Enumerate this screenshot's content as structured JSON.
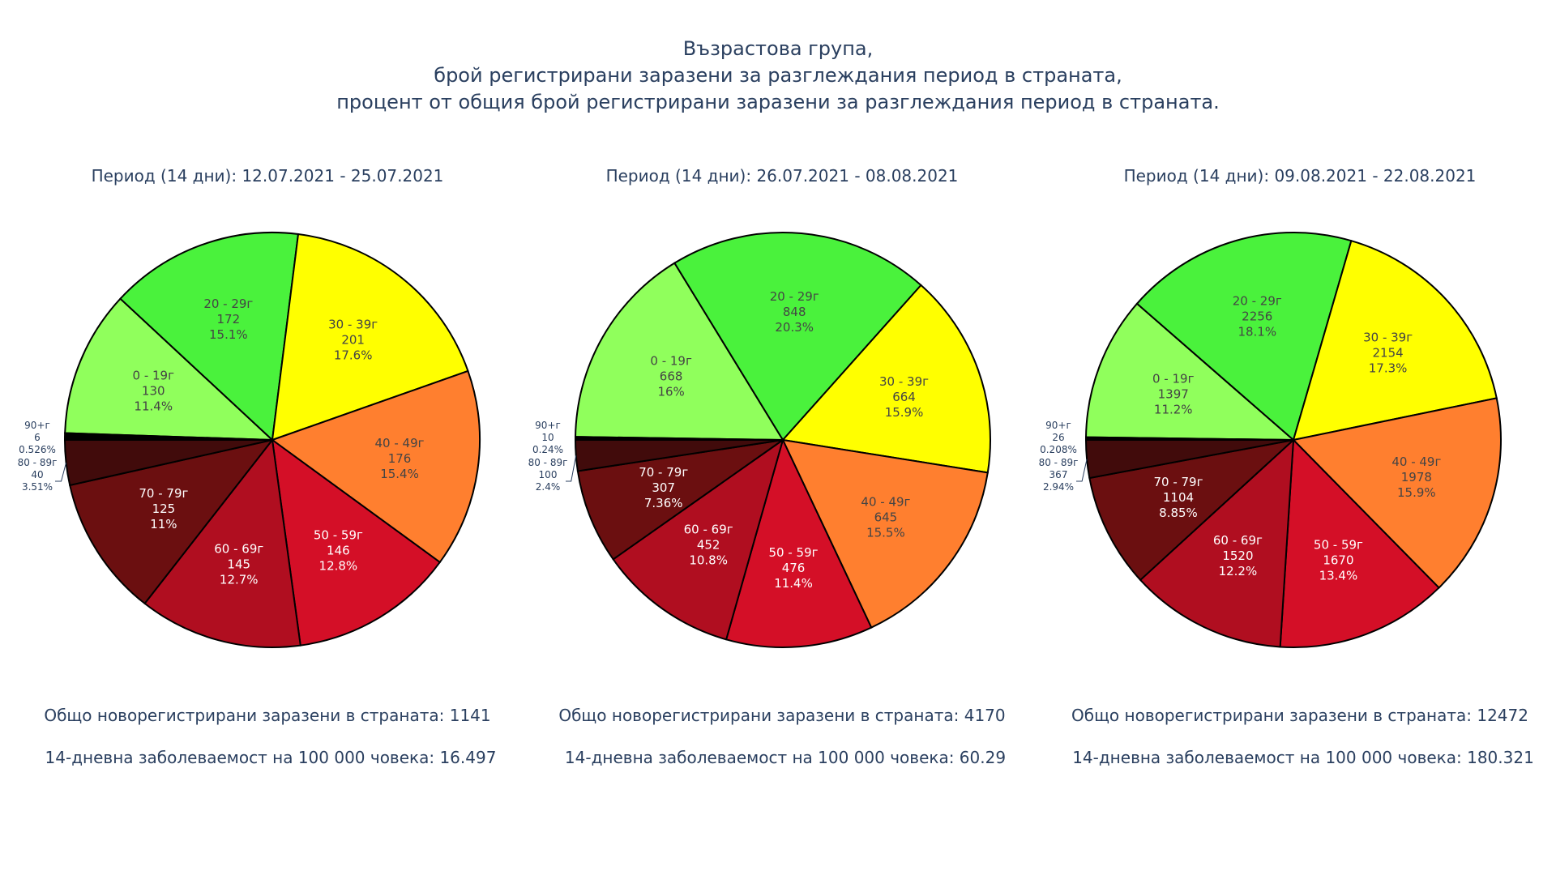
{
  "title_lines": [
    "Възрастова група,",
    "брой регистрирани заразени за разглеждания период в страната,",
    "процент от общия брой регистрирани заразени за разглеждания период в страната."
  ],
  "chart_data": [
    {
      "type": "pie",
      "title": "Период (14 дни): 12.07.2021 - 25.07.2021",
      "labels": [
        "0 - 19г",
        "20 - 29г",
        "30 - 39г",
        "40 - 49г",
        "50 - 59г",
        "60 - 69г",
        "70 - 79г",
        "80 - 89г",
        "90+г"
      ],
      "values": [
        130,
        172,
        201,
        176,
        146,
        145,
        125,
        40,
        6
      ],
      "percent_labels": [
        "11.4%",
        "15.1%",
        "17.6%",
        "15.4%",
        "12.8%",
        "12.7%",
        "11%",
        "3.51%",
        "0.526%"
      ],
      "colors": [
        "#90ff5c",
        "#4af23c",
        "#ffff00",
        "#ff7f2f",
        "#d40f27",
        "#b00e20",
        "#6b0f10",
        "#410b0b",
        "#000000"
      ],
      "total_label": "Общо новорегистрирани заразени в страната: 1141",
      "incidence_label": "14-дневна заболеваемост на 100 000 човека: 16.497"
    },
    {
      "type": "pie",
      "title": "Период (14 дни): 26.07.2021 - 08.08.2021",
      "labels": [
        "0 - 19г",
        "20 - 29г",
        "30 - 39г",
        "40 - 49г",
        "50 - 59г",
        "60 - 69г",
        "70 - 79г",
        "80 - 89г",
        "90+г"
      ],
      "values": [
        668,
        848,
        664,
        645,
        476,
        452,
        307,
        100,
        10
      ],
      "percent_labels": [
        "16%",
        "20.3%",
        "15.9%",
        "15.5%",
        "11.4%",
        "10.8%",
        "7.36%",
        "2.4%",
        "0.24%"
      ],
      "colors": [
        "#90ff5c",
        "#4af23c",
        "#ffff00",
        "#ff7f2f",
        "#d40f27",
        "#b00e20",
        "#6b0f10",
        "#410b0b",
        "#000000"
      ],
      "total_label": "Общо новорегистрирани заразени в страната: 4170",
      "incidence_label": "14-дневна заболеваемост на 100 000 човека: 60.29"
    },
    {
      "type": "pie",
      "title": "Период (14 дни): 09.08.2021 - 22.08.2021",
      "labels": [
        "0 - 19г",
        "20 - 29г",
        "30 - 39г",
        "40 - 49г",
        "50 - 59г",
        "60 - 69г",
        "70 - 79г",
        "80 - 89г",
        "90+г"
      ],
      "values": [
        1397,
        2256,
        2154,
        1978,
        1670,
        1520,
        1104,
        367,
        26
      ],
      "percent_labels": [
        "11.2%",
        "18.1%",
        "17.3%",
        "15.9%",
        "13.4%",
        "12.2%",
        "8.85%",
        "2.94%",
        "0.208%"
      ],
      "colors": [
        "#90ff5c",
        "#4af23c",
        "#ffff00",
        "#ff7f2f",
        "#d40f27",
        "#b00e20",
        "#6b0f10",
        "#410b0b",
        "#000000"
      ],
      "total_label": "Общо новорегистрирани заразени в страната: 12472",
      "incidence_label": "14-дневна заболеваемост на 100 000 човека: 180.321"
    }
  ]
}
